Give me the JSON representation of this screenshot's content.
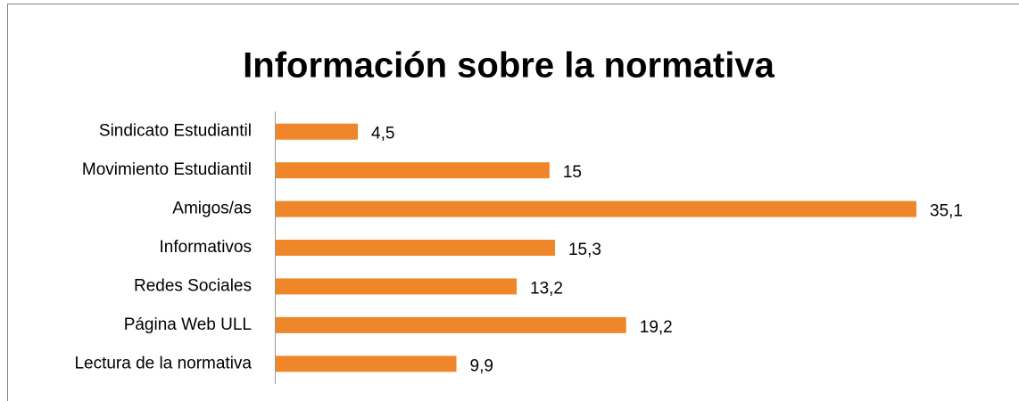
{
  "chart_data": {
    "type": "hbar",
    "title": "Información sobre la normativa",
    "categories": [
      "Sindicato Estudiantil",
      "Movimiento Estudiantil",
      "Amigos/as",
      "Informativos",
      "Redes Sociales",
      "Página Web ULL",
      "Lectura de la normativa"
    ],
    "values": [
      4.5,
      15,
      35.1,
      15.3,
      13.2,
      19.2,
      9.9
    ],
    "value_labels": [
      "4,5",
      "15",
      "35,1",
      "15,3",
      "13,2",
      "19,2",
      "9,9"
    ],
    "color": "#f0862a"
  }
}
